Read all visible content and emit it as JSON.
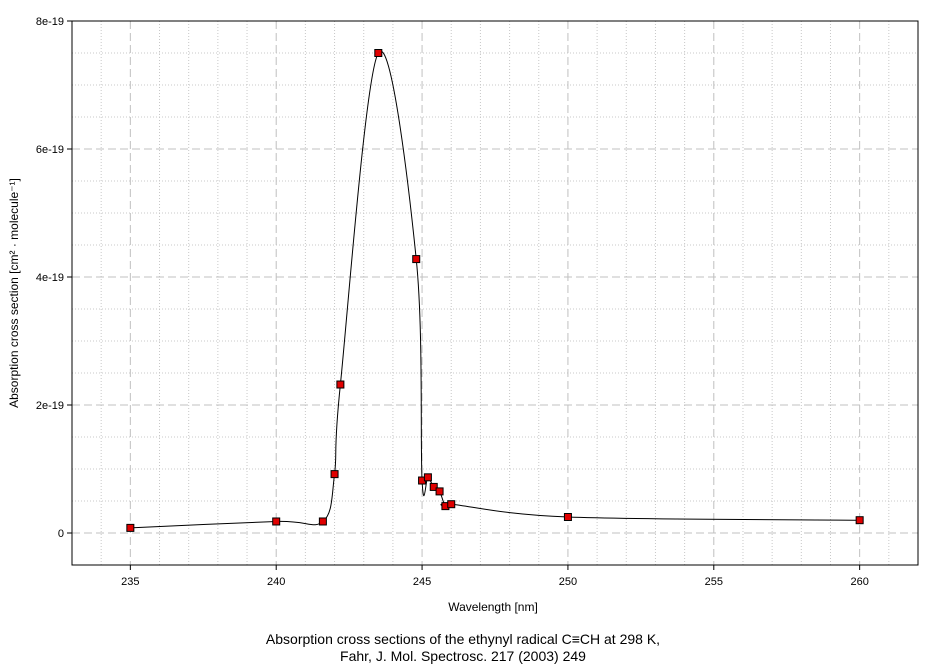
{
  "chart_data": {
    "type": "scatter",
    "title": "",
    "xlabel": "Wavelength [nm]",
    "ylabel": "Absorption cross section [cm² · molecule⁻¹]",
    "xlim": [
      233,
      262
    ],
    "ylim": [
      -5e-20,
      8e-19
    ],
    "x_ticks": [
      235,
      240,
      245,
      250,
      255,
      260
    ],
    "x_tick_labels": [
      "235",
      "240",
      "245",
      "250",
      "255",
      "260"
    ],
    "y_ticks": [
      0,
      2e-19,
      4e-19,
      6e-19,
      8e-19
    ],
    "y_tick_labels": [
      "0",
      "2e-19",
      "4e-19",
      "6e-19",
      "8e-19"
    ],
    "grid": true,
    "marker_color": "#e00000",
    "line_color": "#000000",
    "series": [
      {
        "x": [
          235,
          240,
          241.6,
          242.0,
          242.2,
          243.5,
          244.8,
          245.0,
          245.2,
          245.4,
          245.6,
          245.8,
          246.0,
          250,
          260
        ],
        "values": [
          8e-21,
          1.8e-20,
          1.8e-20,
          9.2e-20,
          2.32e-19,
          7.5e-19,
          4.28e-19,
          8.2e-20,
          8.7e-20,
          7.2e-20,
          6.5e-20,
          4.2e-20,
          4.5e-20,
          2.5e-20,
          2e-20
        ]
      }
    ]
  },
  "caption": {
    "line1": "Absorption cross sections of the ethynyl radical C≡CH at 298 K,",
    "line2": "Fahr, J. Mol. Spectrosc. 217 (2003) 249"
  }
}
